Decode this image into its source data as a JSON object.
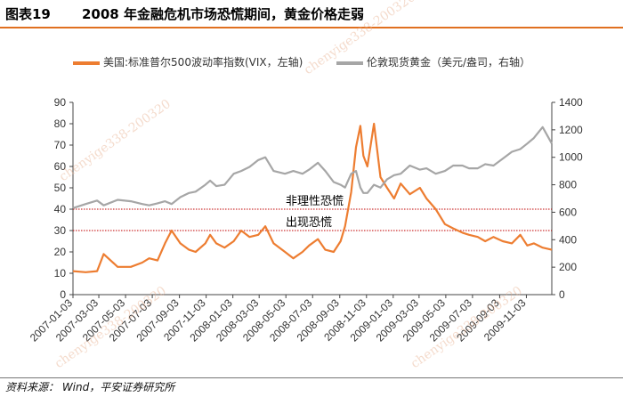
{
  "header": {
    "figure_label": "图表19",
    "title": "2008 年金融危机市场恐慌期间，黄金价格走弱"
  },
  "footer": {
    "source": "资料来源：  Wind，平安证券研究所"
  },
  "watermarks": [
    "chenyige338-200320",
    "chenyige338-200320",
    "chenyige338-200320",
    "chenyige338-200320"
  ],
  "chart_data": {
    "type": "line",
    "x_ticks": [
      "2007-01-03",
      "2007-03-03",
      "2007-05-03",
      "2007-07-03",
      "2007-09-03",
      "2007-11-03",
      "2008-01-03",
      "2008-03-03",
      "2008-05-03",
      "2008-07-03",
      "2008-09-03",
      "2008-11-03",
      "2009-01-03",
      "2009-03-03",
      "2009-05-03",
      "2009-07-03",
      "2009-09-03",
      "2009-11-03"
    ],
    "y_left": {
      "min": 0,
      "max": 90,
      "ticks": [
        0,
        10,
        20,
        30,
        40,
        50,
        60,
        70,
        80,
        90
      ]
    },
    "y_right": {
      "min": 0,
      "max": 1400,
      "ticks": [
        0,
        200,
        400,
        600,
        800,
        1000,
        1200,
        1400
      ]
    },
    "annotations": [
      {
        "label": "非理性恐慌",
        "value": 40
      },
      {
        "label": "出现恐慌",
        "value": 30
      }
    ],
    "series": [
      {
        "name": "美国:标准普尔500波动率指数(VIX，左轴)",
        "axis": "left",
        "color": "#ed7d31",
        "x": [
          "2007-01-03",
          "2007-02-01",
          "2007-02-27",
          "2007-03-14",
          "2007-04-15",
          "2007-05-15",
          "2007-06-10",
          "2007-06-26",
          "2007-07-15",
          "2007-08-01",
          "2007-08-16",
          "2007-09-05",
          "2007-09-25",
          "2007-10-10",
          "2007-11-01",
          "2007-11-12",
          "2007-11-26",
          "2007-12-15",
          "2008-01-05",
          "2008-01-22",
          "2008-02-10",
          "2008-03-01",
          "2008-03-17",
          "2008-04-05",
          "2008-05-01",
          "2008-05-20",
          "2008-06-10",
          "2008-06-25",
          "2008-07-15",
          "2008-08-01",
          "2008-08-20",
          "2008-09-05",
          "2008-09-15",
          "2008-09-29",
          "2008-10-10",
          "2008-10-20",
          "2008-10-27",
          "2008-11-05",
          "2008-11-20",
          "2008-12-05",
          "2008-12-20",
          "2009-01-05",
          "2009-01-20",
          "2009-02-10",
          "2009-03-05",
          "2009-03-20",
          "2009-04-10",
          "2009-05-01",
          "2009-05-20",
          "2009-06-10",
          "2009-06-25",
          "2009-07-15",
          "2009-08-01",
          "2009-08-20",
          "2009-09-10",
          "2009-10-01",
          "2009-10-20",
          "2009-11-05",
          "2009-11-20",
          "2009-12-10",
          "2009-12-31"
        ],
        "y": [
          11,
          10.5,
          11,
          19,
          13,
          13,
          15,
          17,
          16,
          24,
          30,
          24,
          21,
          20,
          24,
          28,
          24,
          22,
          25,
          30,
          27,
          28,
          32,
          24,
          20,
          17,
          20,
          23,
          26,
          21,
          20,
          25,
          32,
          48,
          69,
          79,
          65,
          60,
          80,
          55,
          50,
          45,
          52,
          47,
          50,
          45,
          40,
          33,
          31,
          29,
          28,
          27,
          25,
          27,
          25,
          24,
          28,
          23,
          24,
          22,
          21
        ]
      },
      {
        "name": "伦敦现货黄金（美元/盎司，右轴）",
        "axis": "right",
        "color": "#a6a6a6",
        "x": [
          "2007-01-03",
          "2007-02-01",
          "2007-02-27",
          "2007-03-14",
          "2007-04-15",
          "2007-05-15",
          "2007-06-10",
          "2007-06-26",
          "2007-07-15",
          "2007-08-01",
          "2007-08-16",
          "2007-09-05",
          "2007-09-25",
          "2007-10-10",
          "2007-11-01",
          "2007-11-12",
          "2007-11-26",
          "2007-12-15",
          "2008-01-05",
          "2008-01-22",
          "2008-02-10",
          "2008-03-01",
          "2008-03-17",
          "2008-04-05",
          "2008-05-01",
          "2008-05-20",
          "2008-06-10",
          "2008-06-25",
          "2008-07-15",
          "2008-08-01",
          "2008-08-20",
          "2008-09-05",
          "2008-09-15",
          "2008-09-29",
          "2008-10-10",
          "2008-10-20",
          "2008-10-27",
          "2008-11-05",
          "2008-11-20",
          "2008-12-05",
          "2008-12-20",
          "2009-01-05",
          "2009-01-20",
          "2009-02-10",
          "2009-03-05",
          "2009-03-20",
          "2009-04-10",
          "2009-05-01",
          "2009-05-20",
          "2009-06-10",
          "2009-06-25",
          "2009-07-15",
          "2009-08-01",
          "2009-08-20",
          "2009-09-10",
          "2009-10-01",
          "2009-10-20",
          "2009-11-05",
          "2009-11-20",
          "2009-12-10",
          "2009-12-31"
        ],
        "y": [
          630,
          660,
          685,
          650,
          690,
          680,
          660,
          650,
          665,
          680,
          660,
          710,
          740,
          750,
          800,
          830,
          790,
          800,
          880,
          900,
          930,
          980,
          1000,
          900,
          880,
          900,
          880,
          910,
          960,
          900,
          820,
          800,
          780,
          880,
          900,
          780,
          740,
          740,
          800,
          780,
          840,
          870,
          880,
          940,
          910,
          920,
          880,
          900,
          940,
          940,
          920,
          920,
          950,
          940,
          990,
          1040,
          1060,
          1100,
          1140,
          1220,
          1100
        ]
      }
    ]
  }
}
